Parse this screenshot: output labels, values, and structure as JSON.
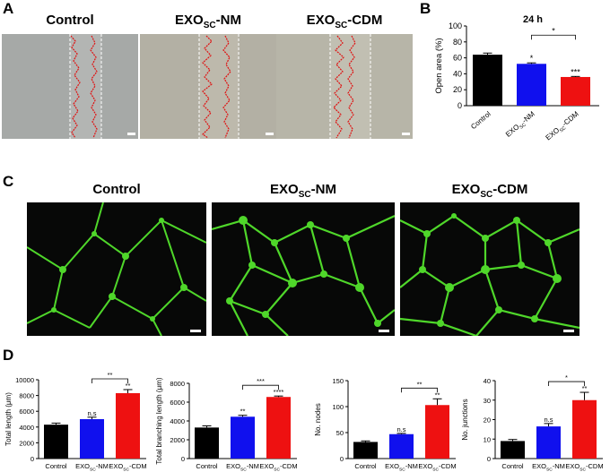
{
  "panels": {
    "A": "A",
    "B": "B",
    "C": "C",
    "D": "D"
  },
  "groups": {
    "control": "Control",
    "nm_base": "EXO",
    "nm_sub": "SC",
    "nm_suffix": "-NM",
    "cdm_base": "EXO",
    "cdm_sub": "SC",
    "cdm_suffix": "-CDM"
  },
  "colors": {
    "control": "#000000",
    "nm": "#1010ee",
    "cdm": "#ee1111",
    "vessel": "#4fd72a",
    "wound_line": "#e01010"
  },
  "chart_data": [
    {
      "type": "bar",
      "panel": "B",
      "title": "24 h",
      "ylabel": "Open area (%)",
      "categories": [
        "Control",
        "EXOSC-NM",
        "EXOSC-CDM"
      ],
      "values": [
        64,
        52.5,
        36
      ],
      "errors": [
        2,
        1.2,
        0.7
      ],
      "ylim": [
        0,
        100
      ],
      "yticks": [
        0,
        20,
        40,
        60,
        80,
        100
      ],
      "bar_labels": [
        "",
        "*",
        "***"
      ],
      "comparisons": [
        {
          "from": 1,
          "to": 2,
          "label": "*"
        }
      ]
    },
    {
      "type": "bar",
      "panel": "D",
      "ylabel": "Total length (μm)",
      "categories": [
        "Control",
        "EXOSC-NM",
        "EXOSC-CDM"
      ],
      "values": [
        4300,
        5000,
        8300
      ],
      "errors": [
        200,
        250,
        450
      ],
      "ylim": [
        0,
        10000
      ],
      "yticks": [
        0,
        2000,
        4000,
        6000,
        8000,
        10000
      ],
      "bar_labels": [
        "",
        "n.s",
        "**"
      ],
      "comparisons": [
        {
          "from": 1,
          "to": 2,
          "label": "**"
        }
      ]
    },
    {
      "type": "bar",
      "panel": "D",
      "ylabel": "Total branching length (μm)",
      "categories": [
        "Control",
        "EXOSC-NM",
        "EXOSC-CDM"
      ],
      "values": [
        3300,
        4450,
        6550
      ],
      "errors": [
        180,
        150,
        100
      ],
      "ylim": [
        0,
        8000
      ],
      "yticks": [
        0,
        2000,
        4000,
        6000,
        8000
      ],
      "bar_labels": [
        "",
        "**",
        "****"
      ],
      "comparisons": [
        {
          "from": 1,
          "to": 2,
          "label": "***"
        }
      ]
    },
    {
      "type": "bar",
      "panel": "D",
      "ylabel": "No. nodes",
      "categories": [
        "Control",
        "EXOSC-NM",
        "EXOSC-CDM"
      ],
      "values": [
        32,
        47,
        103
      ],
      "errors": [
        2,
        1.5,
        12
      ],
      "ylim": [
        0,
        150
      ],
      "yticks": [
        0,
        50,
        100,
        150
      ],
      "bar_labels": [
        "",
        "n.s",
        "**"
      ],
      "comparisons": [
        {
          "from": 1,
          "to": 2,
          "label": "**"
        }
      ]
    },
    {
      "type": "bar",
      "panel": "D",
      "ylabel": "No. junctions",
      "categories": [
        "Control",
        "EXOSC-NM",
        "EXOSC-CDM"
      ],
      "values": [
        9,
        16.5,
        30
      ],
      "errors": [
        0.8,
        1.5,
        4
      ],
      "ylim": [
        0,
        40
      ],
      "yticks": [
        0,
        10,
        20,
        30,
        40
      ],
      "bar_labels": [
        "",
        "n.s",
        "**"
      ],
      "comparisons": [
        {
          "from": 1,
          "to": 2,
          "label": "*"
        }
      ]
    }
  ]
}
